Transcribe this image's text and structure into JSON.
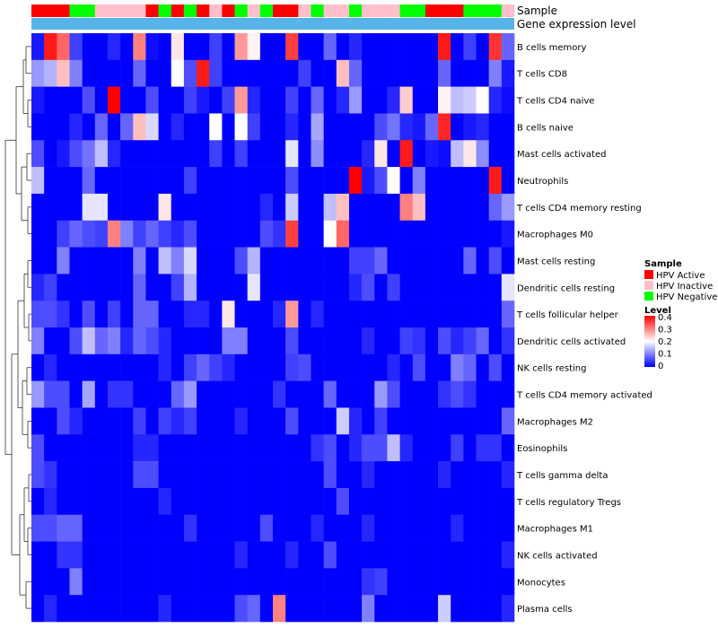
{
  "chart_data": {
    "type": "heatmap",
    "title": "",
    "track_labels": [
      "Sample",
      "Gene expression level"
    ],
    "track2_color": "#56b4e9",
    "group_legend": {
      "title": "Sample",
      "items": [
        {
          "label": "HPV Active",
          "color": "#ff0000"
        },
        {
          "label": "HPV Inactive",
          "color": "#ffc0cb"
        },
        {
          "label": "HPV Negative",
          "color": "#00ff00"
        }
      ]
    },
    "color_legend": {
      "title": "Level",
      "ticks": [
        "0.4",
        "0.3",
        "0.2",
        "0.1",
        "0"
      ],
      "range": [
        0,
        0.4
      ],
      "colors": [
        "#0000ff",
        "#ffffff",
        "#ff0000"
      ]
    },
    "sample_groups": [
      "Active",
      "Active",
      "Active",
      "Negative",
      "Negative",
      "Inactive",
      "Inactive",
      "Inactive",
      "Inactive",
      "Active",
      "Negative",
      "Active",
      "Negative",
      "Active",
      "Inactive",
      "Active",
      "Negative",
      "Inactive",
      "Negative",
      "Active",
      "Active",
      "Inactive",
      "Negative",
      "Inactive",
      "Inactive",
      "Negative",
      "Inactive",
      "Inactive",
      "Inactive",
      "Negative",
      "Negative",
      "Active",
      "Active",
      "Active",
      "Negative",
      "Negative",
      "Negative",
      "Inactive"
    ],
    "rows": [
      "B cells memory",
      "T cells CD8",
      "T cells CD4 naive",
      "B cells naive",
      "Mast cells activated",
      "Neutrophils",
      "T cells CD4 memory resting",
      "Macrophages M0",
      "Mast cells resting",
      "Dendritic cells resting",
      "T cells follicular helper",
      "Dendritic cells activated",
      "NK cells resting",
      "T cells CD4 memory activated",
      "Macrophages M2",
      "Eosinophils",
      "T cells gamma delta",
      "T cells regulatory  Tregs",
      "Macrophages M1",
      "NK cells activated",
      "Monocytes",
      "Plasma cells"
    ],
    "values": [
      [
        0.02,
        0.38,
        0.32,
        0.05,
        0.0,
        0.0,
        0.03,
        0.0,
        0.3,
        0.01,
        0.0,
        0.22,
        0.0,
        0.0,
        0.05,
        0.0,
        0.28,
        0.21,
        0.0,
        0.0,
        0.35,
        0.0,
        0.0,
        0.08,
        0.0,
        0.03,
        0.0,
        0.0,
        0.0,
        0.0,
        0.0,
        0.0,
        0.38,
        0.0,
        0.05,
        0.0,
        0.36,
        0.08
      ],
      [
        0.12,
        0.14,
        0.25,
        0.1,
        0.0,
        0.0,
        0.0,
        0.0,
        0.08,
        0.0,
        0.0,
        0.2,
        0.06,
        0.38,
        0.05,
        0.0,
        0.0,
        0.0,
        0.0,
        0.0,
        0.0,
        0.05,
        0.0,
        0.0,
        0.25,
        0.08,
        0.0,
        0.0,
        0.0,
        0.0,
        0.0,
        0.0,
        0.08,
        0.0,
        0.0,
        0.0,
        0.1,
        0.02
      ],
      [
        0.02,
        0.0,
        0.0,
        0.0,
        0.06,
        0.0,
        0.4,
        0.0,
        0.0,
        0.06,
        0.0,
        0.0,
        0.05,
        0.02,
        0.0,
        0.05,
        0.28,
        0.03,
        0.0,
        0.0,
        0.05,
        0.0,
        0.08,
        0.0,
        0.03,
        0.12,
        0.0,
        0.0,
        0.03,
        0.24,
        0.0,
        0.0,
        0.21,
        0.15,
        0.16,
        0.2,
        0.03,
        0.01
      ],
      [
        0.0,
        0.0,
        0.0,
        0.03,
        0.0,
        0.08,
        0.0,
        0.08,
        0.25,
        0.17,
        0.0,
        0.03,
        0.0,
        0.0,
        0.2,
        0.0,
        0.2,
        0.05,
        0.0,
        0.0,
        0.03,
        0.0,
        0.13,
        0.0,
        0.0,
        0.0,
        0.0,
        0.06,
        0.09,
        0.03,
        0.02,
        0.08,
        0.37,
        0.0,
        0.02,
        0.03,
        0.0,
        0.0
      ],
      [
        0.06,
        0.0,
        0.02,
        0.06,
        0.09,
        0.15,
        0.03,
        0.0,
        0.0,
        0.0,
        0.0,
        0.0,
        0.0,
        0.0,
        0.05,
        0.0,
        0.05,
        0.0,
        0.0,
        0.0,
        0.18,
        0.0,
        0.11,
        0.0,
        0.0,
        0.0,
        0.03,
        0.22,
        0.0,
        0.38,
        0.0,
        0.02,
        0.01,
        0.15,
        0.22,
        0.11,
        0.0,
        0.0
      ],
      [
        0.15,
        0.0,
        0.0,
        0.0,
        0.08,
        0.0,
        0.0,
        0.0,
        0.0,
        0.0,
        0.0,
        0.0,
        0.05,
        0.0,
        0.0,
        0.0,
        0.0,
        0.0,
        0.0,
        0.0,
        0.06,
        0.0,
        0.0,
        0.0,
        0.0,
        0.4,
        0.02,
        0.06,
        0.2,
        0.0,
        0.1,
        0.0,
        0.0,
        0.0,
        0.0,
        0.0,
        0.38,
        0.0
      ],
      [
        0.0,
        0.0,
        0.0,
        0.0,
        0.18,
        0.18,
        0.0,
        0.0,
        0.0,
        0.0,
        0.22,
        0.0,
        0.0,
        0.0,
        0.0,
        0.0,
        0.0,
        0.0,
        0.03,
        0.0,
        0.16,
        0.0,
        0.0,
        0.15,
        0.25,
        0.0,
        0.0,
        0.0,
        0.0,
        0.3,
        0.25,
        0.0,
        0.0,
        0.0,
        0.0,
        0.0,
        0.08,
        0.12
      ],
      [
        0.0,
        0.0,
        0.05,
        0.08,
        0.06,
        0.05,
        0.3,
        0.1,
        0.05,
        0.08,
        0.05,
        0.03,
        0.06,
        0.0,
        0.0,
        0.0,
        0.0,
        0.0,
        0.06,
        0.04,
        0.35,
        0.0,
        0.0,
        0.2,
        0.32,
        0.0,
        0.0,
        0.0,
        0.0,
        0.0,
        0.0,
        0.0,
        0.0,
        0.0,
        0.0,
        0.0,
        0.0,
        0.02
      ],
      [
        0.0,
        0.0,
        0.1,
        0.0,
        0.0,
        0.0,
        0.0,
        0.0,
        0.1,
        0.0,
        0.15,
        0.1,
        0.17,
        0.0,
        0.0,
        0.0,
        0.06,
        0.14,
        0.0,
        0.0,
        0.0,
        0.0,
        0.0,
        0.0,
        0.0,
        0.05,
        0.05,
        0.08,
        0.0,
        0.0,
        0.0,
        0.0,
        0.0,
        0.0,
        0.08,
        0.0,
        0.06,
        0.0
      ],
      [
        0.03,
        0.05,
        0.0,
        0.0,
        0.0,
        0.0,
        0.0,
        0.0,
        0.08,
        0.0,
        0.0,
        0.05,
        0.14,
        0.0,
        0.0,
        0.0,
        0.0,
        0.18,
        0.0,
        0.0,
        0.0,
        0.0,
        0.0,
        0.0,
        0.0,
        0.03,
        0.06,
        0.0,
        0.05,
        0.0,
        0.0,
        0.0,
        0.0,
        0.0,
        0.0,
        0.0,
        0.0,
        0.18
      ],
      [
        0.06,
        0.06,
        0.04,
        0.0,
        0.06,
        0.0,
        0.05,
        0.0,
        0.08,
        0.08,
        0.0,
        0.0,
        0.03,
        0.03,
        0.0,
        0.22,
        0.0,
        0.0,
        0.0,
        0.03,
        0.28,
        0.0,
        0.03,
        0.0,
        0.0,
        0.0,
        0.0,
        0.0,
        0.0,
        0.0,
        0.0,
        0.0,
        0.0,
        0.0,
        0.0,
        0.0,
        0.0,
        0.08
      ],
      [
        0.1,
        0.0,
        0.0,
        0.06,
        0.15,
        0.08,
        0.1,
        0.03,
        0.08,
        0.06,
        0.03,
        0.0,
        0.0,
        0.0,
        0.0,
        0.1,
        0.1,
        0.0,
        0.0,
        0.0,
        0.06,
        0.0,
        0.0,
        0.0,
        0.0,
        0.0,
        0.03,
        0.0,
        0.0,
        0.05,
        0.04,
        0.0,
        0.06,
        0.03,
        0.05,
        0.08,
        0.0,
        0.04
      ],
      [
        0.0,
        0.03,
        0.0,
        0.0,
        0.0,
        0.0,
        0.0,
        0.0,
        0.0,
        0.0,
        0.03,
        0.0,
        0.05,
        0.08,
        0.05,
        0.03,
        0.0,
        0.0,
        0.0,
        0.0,
        0.05,
        0.06,
        0.0,
        0.0,
        0.0,
        0.0,
        0.0,
        0.0,
        0.03,
        0.0,
        0.06,
        0.0,
        0.0,
        0.1,
        0.08,
        0.0,
        0.06,
        0.0
      ],
      [
        0.12,
        0.06,
        0.06,
        0.0,
        0.13,
        0.0,
        0.04,
        0.04,
        0.0,
        0.0,
        0.0,
        0.08,
        0.12,
        0.0,
        0.0,
        0.0,
        0.0,
        0.0,
        0.0,
        0.04,
        0.0,
        0.0,
        0.0,
        0.08,
        0.0,
        0.0,
        0.0,
        0.12,
        0.06,
        0.0,
        0.0,
        0.0,
        0.04,
        0.06,
        0.04,
        0.0,
        0.0,
        0.0
      ],
      [
        0.0,
        0.0,
        0.06,
        0.03,
        0.0,
        0.0,
        0.0,
        0.0,
        0.05,
        0.0,
        0.05,
        0.03,
        0.05,
        0.0,
        0.0,
        0.0,
        0.03,
        0.0,
        0.0,
        0.0,
        0.06,
        0.0,
        0.0,
        0.0,
        0.16,
        0.03,
        0.0,
        0.05,
        0.0,
        0.0,
        0.0,
        0.0,
        0.0,
        0.0,
        0.0,
        0.0,
        0.0,
        0.08
      ],
      [
        0.06,
        0.0,
        0.0,
        0.0,
        0.0,
        0.0,
        0.0,
        0.0,
        0.03,
        0.03,
        0.0,
        0.0,
        0.0,
        0.0,
        0.0,
        0.0,
        0.0,
        0.0,
        0.0,
        0.0,
        0.0,
        0.0,
        0.04,
        0.06,
        0.0,
        0.03,
        0.06,
        0.06,
        0.15,
        0.03,
        0.0,
        0.0,
        0.0,
        0.05,
        0.0,
        0.04,
        0.04,
        0.0
      ],
      [
        0.06,
        0.04,
        0.0,
        0.0,
        0.0,
        0.0,
        0.0,
        0.0,
        0.06,
        0.06,
        0.0,
        0.0,
        0.0,
        0.0,
        0.0,
        0.0,
        0.0,
        0.0,
        0.0,
        0.0,
        0.0,
        0.0,
        0.0,
        0.06,
        0.0,
        0.0,
        0.03,
        0.0,
        0.0,
        0.0,
        0.0,
        0.0,
        0.03,
        0.0,
        0.0,
        0.0,
        0.0,
        0.03
      ],
      [
        0.0,
        0.03,
        0.0,
        0.0,
        0.0,
        0.0,
        0.0,
        0.0,
        0.0,
        0.0,
        0.03,
        0.0,
        0.0,
        0.0,
        0.0,
        0.0,
        0.0,
        0.0,
        0.0,
        0.0,
        0.0,
        0.0,
        0.0,
        0.0,
        0.06,
        0.0,
        0.0,
        0.0,
        0.0,
        0.0,
        0.0,
        0.0,
        0.0,
        0.0,
        0.0,
        0.0,
        0.0,
        0.0
      ],
      [
        0.06,
        0.06,
        0.08,
        0.08,
        0.0,
        0.0,
        0.0,
        0.0,
        0.0,
        0.0,
        0.0,
        0.0,
        0.04,
        0.0,
        0.0,
        0.0,
        0.0,
        0.0,
        0.06,
        0.0,
        0.0,
        0.0,
        0.03,
        0.0,
        0.0,
        0.0,
        0.03,
        0.0,
        0.0,
        0.0,
        0.0,
        0.0,
        0.0,
        0.03,
        0.0,
        0.0,
        0.0,
        0.0
      ],
      [
        0.0,
        0.0,
        0.04,
        0.04,
        0.0,
        0.0,
        0.0,
        0.0,
        0.0,
        0.0,
        0.0,
        0.0,
        0.0,
        0.0,
        0.0,
        0.0,
        0.03,
        0.0,
        0.0,
        0.0,
        0.03,
        0.0,
        0.0,
        0.06,
        0.0,
        0.0,
        0.0,
        0.0,
        0.0,
        0.0,
        0.0,
        0.0,
        0.0,
        0.0,
        0.0,
        0.0,
        0.0,
        0.03
      ],
      [
        0.0,
        0.0,
        0.0,
        0.1,
        0.0,
        0.0,
        0.0,
        0.0,
        0.0,
        0.0,
        0.0,
        0.0,
        0.0,
        0.0,
        0.0,
        0.0,
        0.0,
        0.0,
        0.0,
        0.0,
        0.0,
        0.0,
        0.0,
        0.0,
        0.0,
        0.0,
        0.04,
        0.05,
        0.0,
        0.0,
        0.0,
        0.0,
        0.0,
        0.0,
        0.0,
        0.0,
        0.0,
        0.0
      ],
      [
        0.0,
        0.03,
        0.0,
        0.0,
        0.0,
        0.0,
        0.0,
        0.0,
        0.0,
        0.0,
        0.03,
        0.0,
        0.0,
        0.0,
        0.0,
        0.0,
        0.06,
        0.08,
        0.0,
        0.3,
        0.0,
        0.0,
        0.0,
        0.0,
        0.0,
        0.0,
        0.1,
        0.0,
        0.0,
        0.0,
        0.0,
        0.0,
        0.16,
        0.0,
        0.0,
        0.0,
        0.0,
        0.03
      ]
    ]
  }
}
